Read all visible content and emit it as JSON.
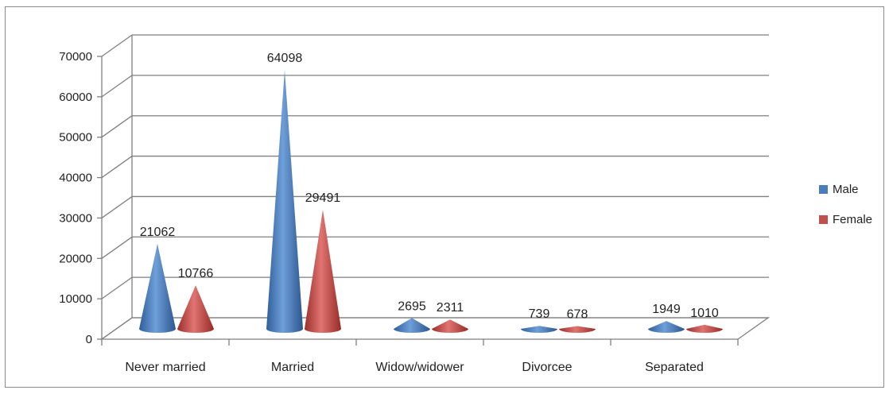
{
  "chart_data": {
    "type": "bar",
    "bar_shape": "3d-cone",
    "categories": [
      "Never married",
      "Married",
      "Widow/widower",
      "Divorcee",
      "Separated"
    ],
    "series": [
      {
        "name": "Male",
        "values": [
          21062,
          64098,
          2695,
          739,
          1949
        ],
        "color": "#4a7ebb"
      },
      {
        "name": "Female",
        "values": [
          10766,
          29491,
          2311,
          678,
          1010
        ],
        "color": "#c0504d"
      }
    ],
    "data_labels": [
      [
        "21062",
        "64098",
        "2695",
        "739",
        "1949"
      ],
      [
        "10766",
        "29491",
        "2311",
        "678",
        "1010"
      ]
    ],
    "y_ticks": [
      "0",
      "10000",
      "20000",
      "30000",
      "40000",
      "50000",
      "60000",
      "70000"
    ],
    "ylim": [
      0,
      70000
    ],
    "grid": true,
    "legend_position": "right"
  }
}
